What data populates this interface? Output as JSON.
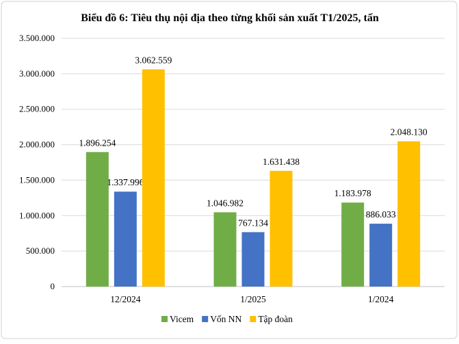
{
  "chart_data": {
    "type": "bar",
    "title": "Biểu đồ 6: Tiêu thụ nội địa theo từng khối sản xuất T1/2025, tấn",
    "categories": [
      "12/2024",
      "1/2025",
      "1/2024"
    ],
    "series": [
      {
        "name": "Vicem",
        "color": "#70AD47",
        "values": [
          1896254,
          1046982,
          1183978
        ],
        "labels": [
          "1.896.254",
          "1.046.982",
          "1.183.978"
        ]
      },
      {
        "name": "Vốn NN",
        "color": "#4472C4",
        "values": [
          1337996,
          767134,
          886033
        ],
        "labels": [
          "1.337.996",
          "767.134",
          "886.033"
        ]
      },
      {
        "name": "Tập đoàn",
        "color": "#FFC000",
        "values": [
          3062559,
          1631438,
          2048130
        ],
        "labels": [
          "3.062.559",
          "1.631.438",
          "2.048.130"
        ]
      }
    ],
    "yticks": [
      0,
      500000,
      1000000,
      1500000,
      2000000,
      2500000,
      3000000,
      3500000
    ],
    "ytick_labels": [
      "0",
      "500.000",
      "1.000.000",
      "1.500.000",
      "2.000.000",
      "2.500.000",
      "3.000.000",
      "3.500.000"
    ],
    "ylim": [
      0,
      3500000
    ],
    "xlabel": "",
    "ylabel": "",
    "grid": true,
    "legend_position": "bottom"
  }
}
